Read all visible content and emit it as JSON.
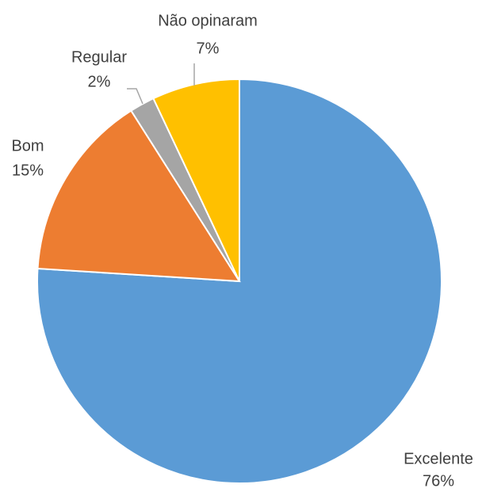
{
  "chart_data": {
    "type": "pie",
    "categories": [
      "Excelente",
      "Bom",
      "Regular",
      "Não opinaram"
    ],
    "values": [
      76,
      15,
      2,
      7
    ],
    "value_labels": [
      "76%",
      "15%",
      "2%",
      "7%"
    ],
    "colors": [
      "#5b9bd5",
      "#ed7d31",
      "#a5a5a5",
      "#ffc000"
    ]
  }
}
